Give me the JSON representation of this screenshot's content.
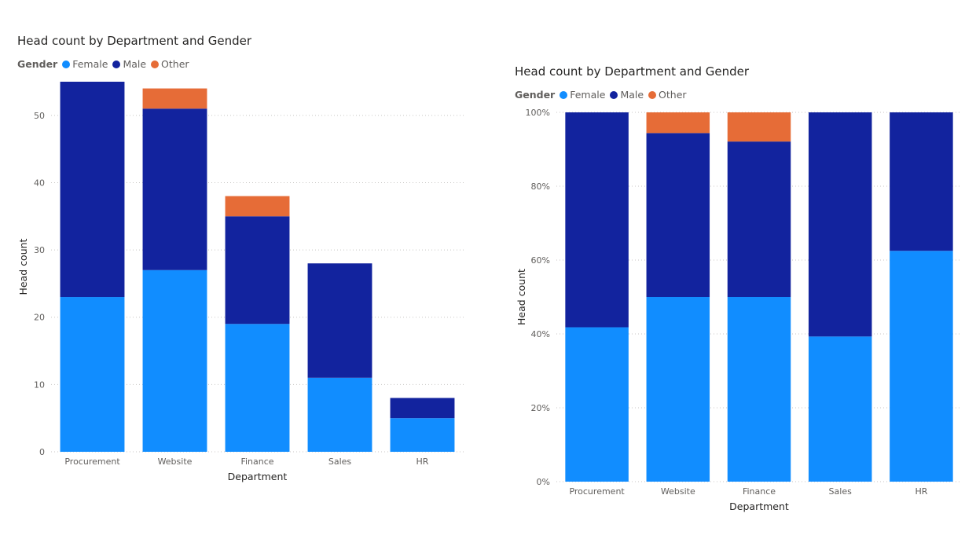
{
  "colors": {
    "female": "#118dff",
    "male": "#12239e",
    "other": "#e66c37",
    "grid": "#c8c6c4"
  },
  "chart_data": [
    {
      "type": "bar",
      "stacked": true,
      "title": "Head count by Department and Gender",
      "legend_title": "Gender",
      "legend_position": "top-left",
      "xlabel": "Department",
      "ylabel": "Head count",
      "ylim": [
        0,
        55
      ],
      "yticks": [
        0,
        10,
        20,
        30,
        40,
        50
      ],
      "ytick_labels": [
        "0",
        "10",
        "20",
        "30",
        "40",
        "50"
      ],
      "grid": true,
      "categories": [
        "Procurement",
        "Website",
        "Finance",
        "Sales",
        "HR"
      ],
      "series": [
        {
          "name": "Female",
          "color": "#118dff",
          "values": [
            23,
            27,
            19,
            11,
            5
          ]
        },
        {
          "name": "Male",
          "color": "#12239e",
          "values": [
            32,
            24,
            16,
            17,
            3
          ]
        },
        {
          "name": "Other",
          "color": "#e66c37",
          "values": [
            0,
            3,
            3,
            0,
            0
          ]
        }
      ]
    },
    {
      "type": "bar",
      "stacked": true,
      "percent": true,
      "title": "Head count by Department and Gender",
      "legend_title": "Gender",
      "legend_position": "top-left",
      "xlabel": "Department",
      "ylabel": "Head count",
      "ylim": [
        0,
        100
      ],
      "yticks": [
        0,
        20,
        40,
        60,
        80,
        100
      ],
      "ytick_labels": [
        "0%",
        "20%",
        "40%",
        "60%",
        "80%",
        "100%"
      ],
      "grid": true,
      "categories": [
        "Procurement",
        "Website",
        "Finance",
        "Sales",
        "HR"
      ],
      "series": [
        {
          "name": "Female",
          "color": "#118dff",
          "values": [
            41.8,
            50.0,
            50.0,
            39.3,
            62.5
          ]
        },
        {
          "name": "Male",
          "color": "#12239e",
          "values": [
            58.2,
            44.4,
            42.1,
            60.7,
            37.5
          ]
        },
        {
          "name": "Other",
          "color": "#e66c37",
          "values": [
            0,
            5.6,
            7.9,
            0,
            0
          ]
        }
      ]
    }
  ]
}
